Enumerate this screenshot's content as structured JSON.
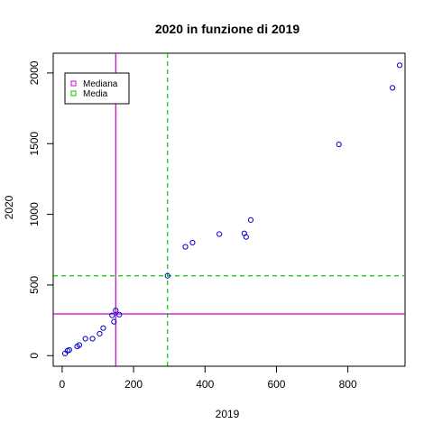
{
  "chart_data": {
    "type": "scatter",
    "title": "2020 in funzione di 2019",
    "xlabel": "2019",
    "ylabel": "2020",
    "xlim": [
      -25,
      960
    ],
    "ylim": [
      -75,
      2140
    ],
    "x_ticks": [
      0,
      200,
      400,
      600,
      800
    ],
    "y_ticks": [
      0,
      500,
      1000,
      1500,
      2000
    ],
    "point_color": "#0000cc",
    "points": [
      {
        "x": 8,
        "y": 15
      },
      {
        "x": 15,
        "y": 35
      },
      {
        "x": 20,
        "y": 40
      },
      {
        "x": 42,
        "y": 65
      },
      {
        "x": 48,
        "y": 75
      },
      {
        "x": 65,
        "y": 120
      },
      {
        "x": 85,
        "y": 120
      },
      {
        "x": 105,
        "y": 155
      },
      {
        "x": 115,
        "y": 195
      },
      {
        "x": 140,
        "y": 285
      },
      {
        "x": 145,
        "y": 240
      },
      {
        "x": 150,
        "y": 320
      },
      {
        "x": 160,
        "y": 290
      },
      {
        "x": 295,
        "y": 565
      },
      {
        "x": 345,
        "y": 770
      },
      {
        "x": 365,
        "y": 800
      },
      {
        "x": 440,
        "y": 860
      },
      {
        "x": 510,
        "y": 865
      },
      {
        "x": 515,
        "y": 840
      },
      {
        "x": 528,
        "y": 960
      },
      {
        "x": 775,
        "y": 1495
      },
      {
        "x": 925,
        "y": 1895
      },
      {
        "x": 945,
        "y": 2055
      }
    ],
    "reference_lines": [
      {
        "name": "Mediana",
        "x": 150,
        "y": 295,
        "color": "#cc00cc",
        "style": "solid"
      },
      {
        "name": "Media",
        "x": 295,
        "y": 565,
        "color": "#00cc00",
        "style": "dashed"
      }
    ],
    "legend": {
      "placement": "top-left",
      "entries": [
        {
          "label": "Mediana",
          "color": "#cc00cc"
        },
        {
          "label": "Media",
          "color": "#00cc00"
        }
      ]
    }
  }
}
